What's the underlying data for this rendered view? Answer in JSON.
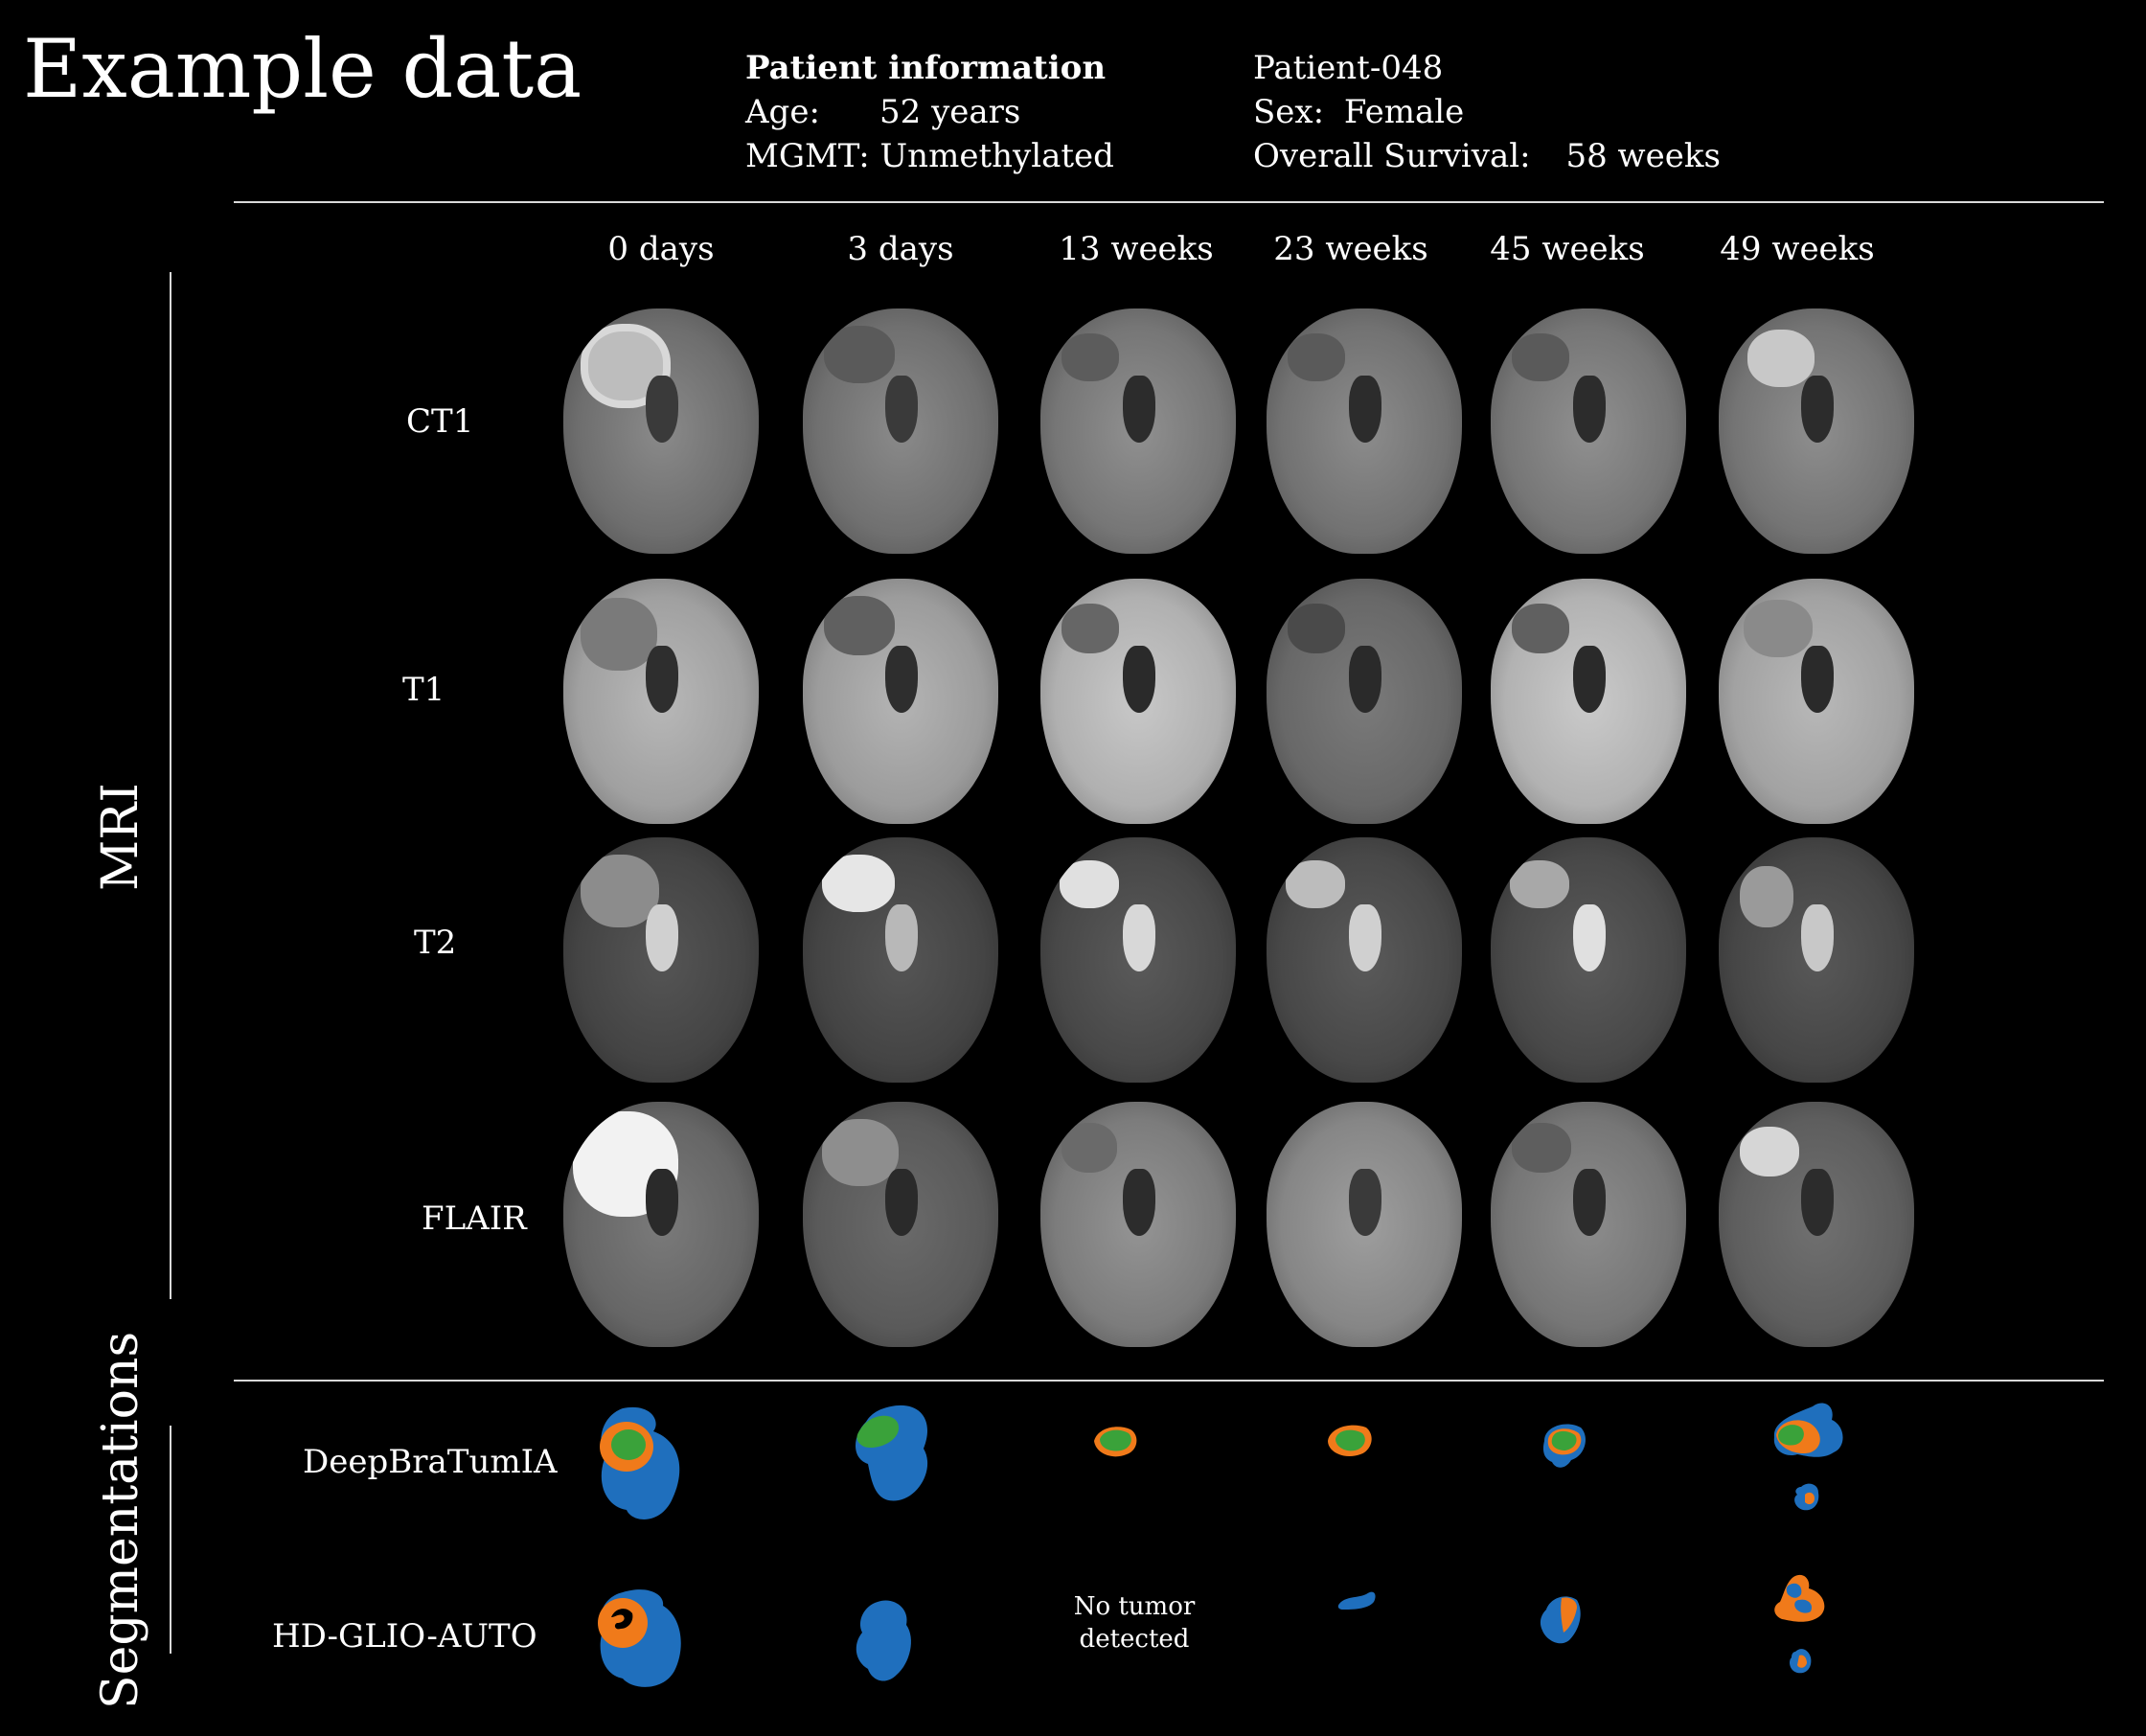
{
  "title": "Example data",
  "patient_info": {
    "heading": "Patient information",
    "age_label": "Age:",
    "age_value": "52 years",
    "mgmt_label": "MGMT:",
    "mgmt_value": "Unmethylated",
    "patient_id": "Patient-048",
    "sex_label": "Sex:",
    "sex_value": "Female",
    "survival_label": "Overall Survival:",
    "survival_value": "58 weeks"
  },
  "timepoints": [
    "0 days",
    "3 days",
    "13 weeks",
    "23 weeks",
    "45 weeks",
    "49 weeks"
  ],
  "mri": {
    "section_label": "MRI",
    "sequences": [
      "CT1",
      "T1",
      "T2",
      "FLAIR"
    ]
  },
  "segmentations": {
    "section_label": "Segmentations",
    "methods": [
      "DeepBraTumIA",
      "HD-GLIO-AUTO"
    ],
    "no_tumor_note_line1": "No tumor",
    "no_tumor_note_line2": "detected"
  },
  "colors": {
    "background": "#000000",
    "edema": "#1f6fbd",
    "enhancing": "#f07a1a",
    "necrosis": "#3aa23a"
  }
}
